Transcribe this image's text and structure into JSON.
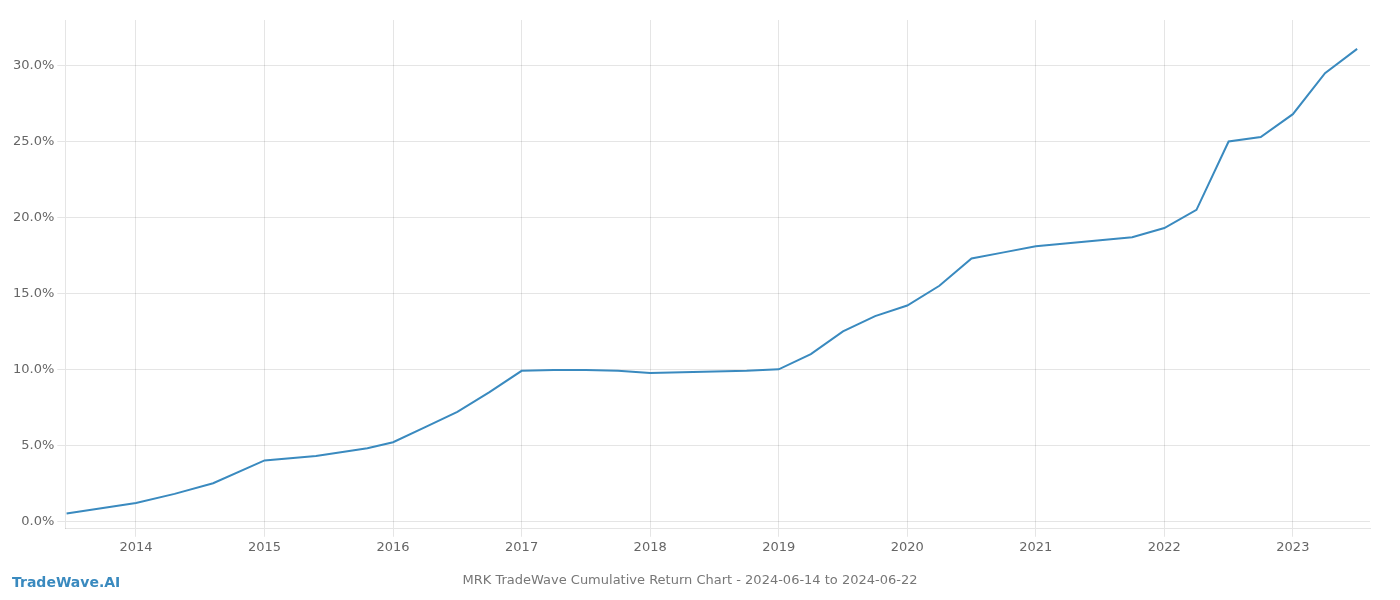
{
  "chart_data": {
    "type": "line",
    "title": "MRK TradeWave Cumulative Return Chart - 2024-06-14 to 2024-06-22",
    "annotations": [
      {
        "text": "TradeWave.AI",
        "color": "#3a8abf"
      }
    ],
    "x": [
      2013.46,
      2014.0,
      2014.3,
      2014.6,
      2015.0,
      2015.4,
      2015.8,
      2016.0,
      2016.25,
      2016.5,
      2016.75,
      2017.0,
      2017.25,
      2017.5,
      2017.75,
      2018.0,
      2018.25,
      2018.5,
      2018.75,
      2019.0,
      2019.25,
      2019.5,
      2019.75,
      2020.0,
      2020.25,
      2020.5,
      2020.75,
      2021.0,
      2021.25,
      2021.5,
      2021.75,
      2022.0,
      2022.25,
      2022.5,
      2022.75,
      2023.0,
      2023.25,
      2023.5
    ],
    "values": [
      0.5,
      1.2,
      1.8,
      2.5,
      4.0,
      4.3,
      4.8,
      5.2,
      6.2,
      7.2,
      8.5,
      9.9,
      9.95,
      9.95,
      9.9,
      9.75,
      9.8,
      9.85,
      9.9,
      10.0,
      11.0,
      12.5,
      13.5,
      14.2,
      15.5,
      17.3,
      17.7,
      18.1,
      18.3,
      18.5,
      18.7,
      19.3,
      20.5,
      25.0,
      25.3,
      26.8,
      29.5,
      31.1
    ],
    "color": "#3a8abf",
    "xlim": [
      2013.45,
      2023.6
    ],
    "xticks": [
      2014,
      2015,
      2016,
      2017,
      2018,
      2019,
      2020,
      2021,
      2022,
      2023
    ],
    "ylim": [
      -0.5,
      33.0
    ],
    "yticks": [
      {
        "value": 0.0,
        "label": "0.0%"
      },
      {
        "value": 5.0,
        "label": "5.0%"
      },
      {
        "value": 10.0,
        "label": "10.0%"
      },
      {
        "value": 15.0,
        "label": "15.0%"
      },
      {
        "value": 20.0,
        "label": "20.0%"
      },
      {
        "value": 25.0,
        "label": "25.0%"
      },
      {
        "value": 30.0,
        "label": "30.0%"
      }
    ],
    "grid": true
  }
}
